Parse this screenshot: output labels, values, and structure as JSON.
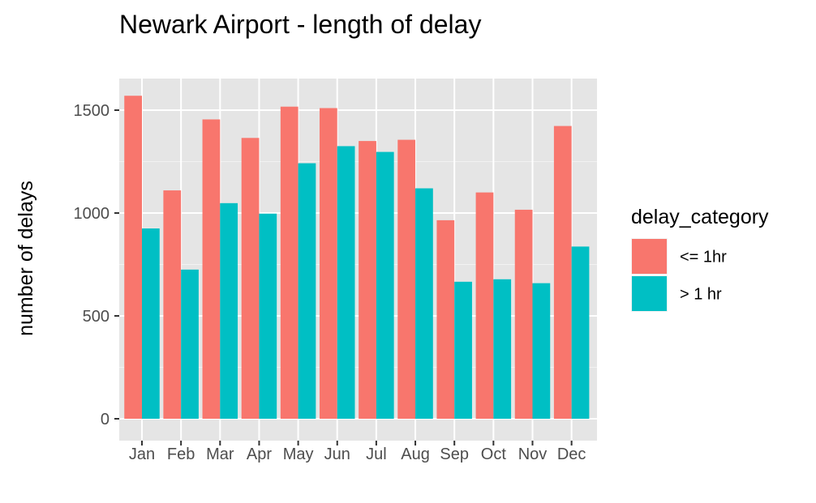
{
  "chart_data": {
    "type": "bar",
    "title": "Newark Airport - length of delay",
    "xlabel": "",
    "ylabel": "number of delays",
    "ylim": [
      0,
      1600
    ],
    "yticks": [
      0,
      500,
      1000,
      1500
    ],
    "grid": true,
    "legend_position": "right",
    "legend_title": "delay_category",
    "categories": [
      "Jan",
      "Feb",
      "Mar",
      "Apr",
      "May",
      "Jun",
      "Jul",
      "Aug",
      "Sep",
      "Oct",
      "Nov",
      "Dec"
    ],
    "series": [
      {
        "name": "<= 1hr",
        "color": "#F8766D",
        "values": [
          1570,
          1110,
          1455,
          1365,
          1517,
          1510,
          1350,
          1356,
          965,
          1100,
          1016,
          1423
        ]
      },
      {
        "name": "> 1 hr",
        "color": "#00BFC4",
        "values": [
          925,
          725,
          1048,
          997,
          1242,
          1325,
          1297,
          1120,
          666,
          678,
          659,
          837
        ]
      }
    ]
  }
}
